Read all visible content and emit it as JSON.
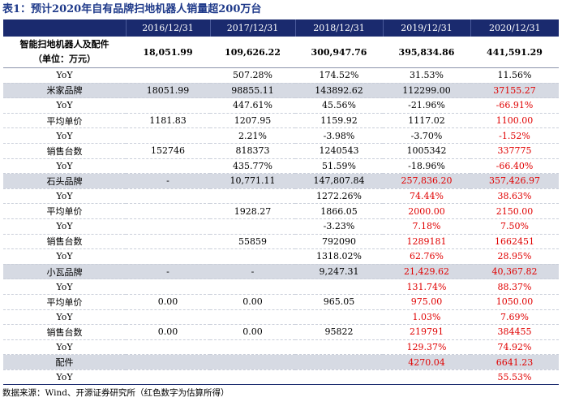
{
  "title": "表1：预计2020年自有品牌扫地机器人销量超200万台",
  "columns": [
    "",
    "2016/12/31",
    "2017/12/31",
    "2018/12/31",
    "2019/12/31",
    "2020/12/31"
  ],
  "header_row": {
    "label_line1": "智能扫地机器人及配件",
    "label_line2": "（单位：万元）",
    "values": [
      "18,051.99",
      "109,626.22",
      "300,947.76",
      "395,834.86",
      "441,591.29"
    ]
  },
  "rows": [
    {
      "label": "YoY",
      "values": [
        "",
        "507.28%",
        "174.52%",
        "31.53%",
        "11.56%"
      ],
      "shade": false,
      "red_from": 99
    },
    {
      "label": "米家品牌",
      "values": [
        "18051.99",
        "98855.11",
        "143892.62",
        "112299.00",
        "37155.27"
      ],
      "shade": true,
      "red_from": 4
    },
    {
      "label": "YoY",
      "values": [
        "",
        "447.61%",
        "45.56%",
        "-21.96%",
        "-66.91%"
      ],
      "shade": false,
      "red_from": 4
    },
    {
      "label": "平均单价",
      "values": [
        "1181.83",
        "1207.95",
        "1159.92",
        "1117.02",
        "1100.00"
      ],
      "shade": false,
      "red_from": 4
    },
    {
      "label": "YoY",
      "values": [
        "",
        "2.21%",
        "-3.98%",
        "-3.70%",
        "-1.52%"
      ],
      "shade": false,
      "red_from": 4
    },
    {
      "label": "销售台数",
      "values": [
        "152746",
        "818373",
        "1240543",
        "1005342",
        "337775"
      ],
      "shade": false,
      "red_from": 4
    },
    {
      "label": "YoY",
      "values": [
        "",
        "435.77%",
        "51.59%",
        "-18.96%",
        "-66.40%"
      ],
      "shade": false,
      "red_from": 4
    },
    {
      "label": "石头品牌",
      "values": [
        "-",
        "10,771.11",
        "147,807.84",
        "257,836.20",
        "357,426.97"
      ],
      "shade": true,
      "red_from": 3
    },
    {
      "label": "YoY",
      "values": [
        "",
        "",
        "1272.26%",
        "74.44%",
        "38.63%"
      ],
      "shade": false,
      "red_from": 3
    },
    {
      "label": "平均单价",
      "values": [
        "",
        "1928.27",
        "1866.05",
        "2000.00",
        "2150.00"
      ],
      "shade": false,
      "red_from": 3
    },
    {
      "label": "YoY",
      "values": [
        "",
        "",
        "-3.23%",
        "7.18%",
        "7.50%"
      ],
      "shade": false,
      "red_from": 3
    },
    {
      "label": "销售台数",
      "values": [
        "",
        "55859",
        "792090",
        "1289181",
        "1662451"
      ],
      "shade": false,
      "red_from": 3
    },
    {
      "label": "YoY",
      "values": [
        "",
        "",
        "1318.02%",
        "62.76%",
        "28.95%"
      ],
      "shade": false,
      "red_from": 3
    },
    {
      "label": "小瓦品牌",
      "values": [
        "-",
        "-",
        "9,247.31",
        "21,429.62",
        "40,367.82"
      ],
      "shade": true,
      "red_from": 3
    },
    {
      "label": "YoY",
      "values": [
        "",
        "",
        "",
        "131.74%",
        "88.37%"
      ],
      "shade": false,
      "red_from": 3
    },
    {
      "label": "平均单价",
      "values": [
        "0.00",
        "0.00",
        "965.05",
        "975.00",
        "1050.00"
      ],
      "shade": false,
      "red_from": 3
    },
    {
      "label": "YoY",
      "values": [
        "",
        "",
        "",
        "1.03%",
        "7.69%"
      ],
      "shade": false,
      "red_from": 3
    },
    {
      "label": "销售台数",
      "values": [
        "0.00",
        "0.00",
        "95822",
        "219791",
        "384455"
      ],
      "shade": false,
      "red_from": 3
    },
    {
      "label": "YoY",
      "values": [
        "",
        "",
        "",
        "129.37%",
        "74.92%"
      ],
      "shade": false,
      "red_from": 3
    },
    {
      "label": "配件",
      "values": [
        "",
        "",
        "",
        "4270.04",
        "6641.23"
      ],
      "shade": true,
      "red_from": 3
    },
    {
      "label": "YoY",
      "values": [
        "",
        "",
        "",
        "",
        "55.53%"
      ],
      "shade": false,
      "red_from": 3
    }
  ],
  "source": "数据来源：Wind、开源证券研究所（红色数字为估算所得）"
}
